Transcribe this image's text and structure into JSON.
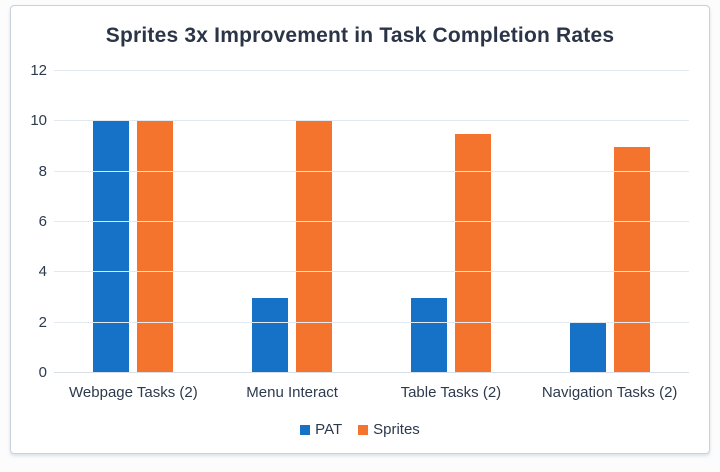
{
  "title": "Sprites 3x Improvement in Task Completion Rates",
  "colors": {
    "pat_blue": "#1672c6",
    "sprites_orange": "#f4732d",
    "title_text": "#2b3547",
    "axis_text": "#2c3a4e",
    "gridline": "#e4e9ef"
  },
  "chart_data": {
    "type": "bar",
    "title": "Sprites 3x Improvement in Task Completion Rates",
    "categories": [
      "Webpage Tasks (2)",
      "Menu Interact",
      "Table Tasks (2)",
      "Navigation Tasks (2)"
    ],
    "series": [
      {
        "name": "PAT",
        "color": "#1672c6",
        "values": [
          10,
          3,
          3,
          2
        ]
      },
      {
        "name": "Sprites",
        "color": "#f4732d",
        "values": [
          10,
          10,
          9.5,
          9
        ]
      }
    ],
    "xlabel": "",
    "ylabel": "",
    "ylim": [
      0,
      12
    ],
    "yticks": [
      0,
      2,
      4,
      6,
      8,
      10,
      12
    ],
    "grid": true,
    "legend_position": "bottom"
  }
}
